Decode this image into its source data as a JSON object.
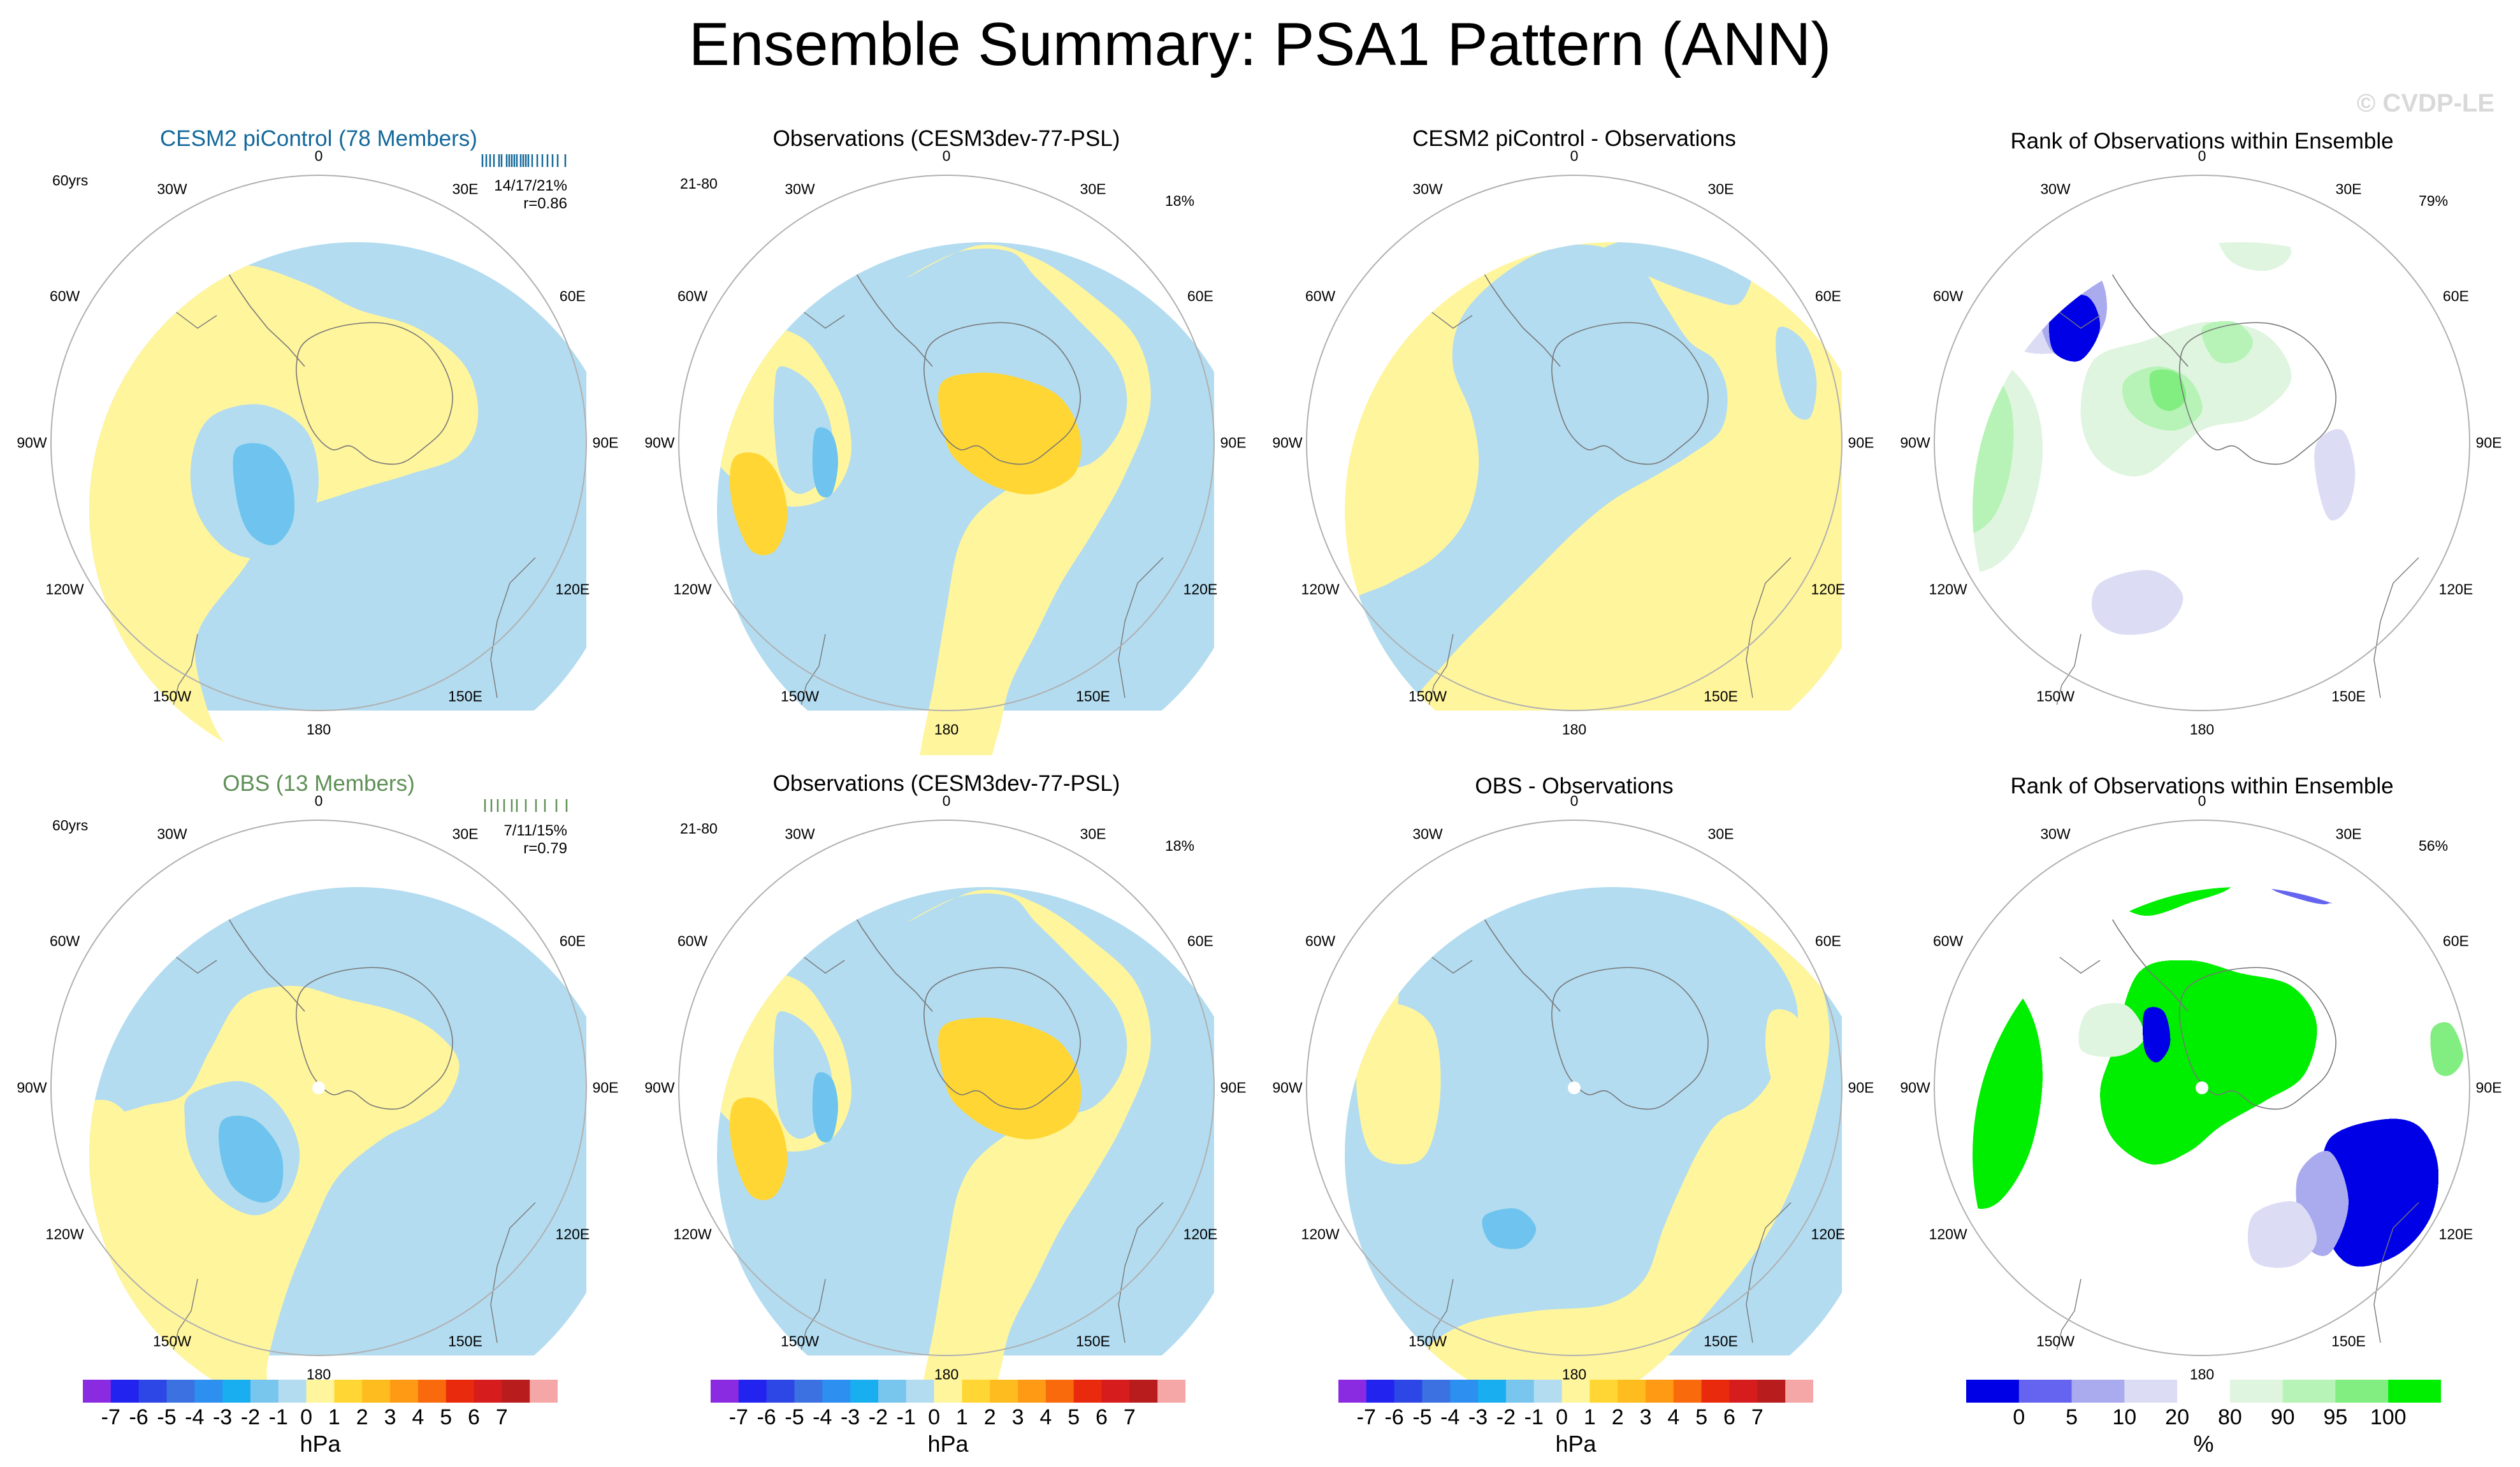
{
  "title": "Ensemble Summary: PSA1 Pattern (ANN)",
  "watermark": "© CVDP-LE",
  "lon_labels": [
    "0",
    "30E",
    "60E",
    "90E",
    "120E",
    "150E",
    "180",
    "150W",
    "120W",
    "90W",
    "60W",
    "30W"
  ],
  "colors": {
    "pos1": "#fff59d",
    "pos2": "#ffd633",
    "neg1": "#b3dcf0",
    "neg2": "#6ec4ee",
    "rank_b3": "#0000e6",
    "rank_b2": "#6464f0",
    "rank_b1": "#aaaaee",
    "rank_b0": "#dcdcf5",
    "rank_g0": "#dff5df",
    "rank_g1": "#b7f3b7",
    "rank_g2": "#82ee82",
    "rank_g3": "#00ee00",
    "title_model": "#13689a",
    "title_obsens": "#5f8f56"
  },
  "panels": [
    {
      "id": "p1",
      "title": "CESM2 piControl (78 Members)",
      "left_label": "60yrs",
      "stat1": "14/17/21%",
      "stat2": "r=0.86"
    },
    {
      "id": "p2",
      "title": "Observations (CESM3dev-77-PSL)",
      "left_label": "21-80",
      "right_label": "18%"
    },
    {
      "id": "p3",
      "title": "CESM2 piControl - Observations"
    },
    {
      "id": "p4",
      "title": "Rank of Observations within Ensemble",
      "right_label": "79%"
    },
    {
      "id": "p5",
      "title": "OBS (13 Members)",
      "left_label": "60yrs",
      "stat1": "7/11/15%",
      "stat2": "r=0.79"
    },
    {
      "id": "p6",
      "title": "Observations (CESM3dev-77-PSL)",
      "left_label": "21-80",
      "right_label": "18%"
    },
    {
      "id": "p7",
      "title": "OBS - Observations"
    },
    {
      "id": "p8",
      "title": "Rank of Observations within Ensemble",
      "right_label": "56%"
    }
  ],
  "chart_data": [
    {
      "type": "heatmap",
      "title": "Ensemble Summary: PSA1 Pattern (ANN)",
      "projection": "south polar stereographic",
      "panels": [
        "CESM2 piControl (78 Members)",
        "Observations (CESM3dev-77-PSL)",
        "CESM2 piControl - Observations",
        "Rank of Observations within Ensemble",
        "OBS (13 Members)",
        "Observations (CESM3dev-77-PSL)",
        "OBS - Observations",
        "Rank of Observations within Ensemble"
      ]
    }
  ],
  "colorbar_hpa": {
    "unit": "hPa",
    "ticks": [
      "-7",
      "-6",
      "-5",
      "-4",
      "-3",
      "-2",
      "-1",
      "0",
      "1",
      "2",
      "3",
      "4",
      "5",
      "6",
      "7"
    ],
    "colors": [
      "#8a2be2",
      "#2323f0",
      "#2c47e6",
      "#3b71e0",
      "#2d8ff0",
      "#18aef0",
      "#78c6ee",
      "#b3dcf0",
      "#fff59d",
      "#ffd633",
      "#ffbc1e",
      "#ff9a14",
      "#f86a0c",
      "#ea2a0c",
      "#d61c1c",
      "#b81c1c",
      "#f5a6a6"
    ]
  },
  "colorbar_rank": {
    "unit": "%",
    "ticks": [
      "0",
      "5",
      "10",
      "20",
      "80",
      "90",
      "95",
      "100"
    ],
    "colors": [
      "#0000e6",
      "#6464f0",
      "#aaaaee",
      "#dcdcf5",
      "#ffffff",
      "#dff5df",
      "#b7f3b7",
      "#82ee82",
      "#00ee00"
    ]
  }
}
